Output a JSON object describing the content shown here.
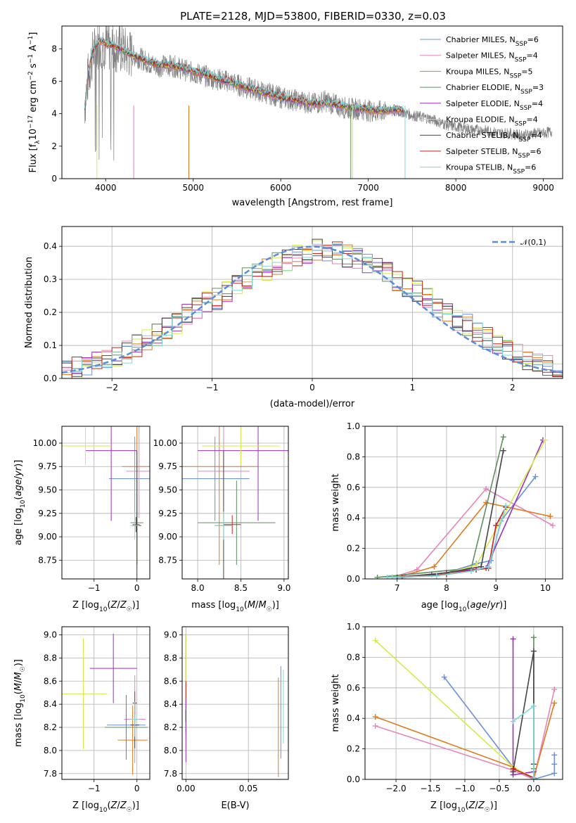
{
  "figure": {
    "title": "PLATE=2128, MJD=53800, FIBERID=0330, z=0.03"
  },
  "models": [
    {
      "name": "Chabrier MILES, N_SSP=6",
      "color": "#6a8fdc"
    },
    {
      "name": "Salpeter MILES, N_SSP=4",
      "color": "#e585bb"
    },
    {
      "name": "Kroupa MILES, N_SSP=5",
      "color": "#e07a1f"
    },
    {
      "name": "Chabrier ELODIE, N_SSP=3",
      "color": "#5d8f5f"
    },
    {
      "name": "Salpeter ELODIE, N_SSP=4",
      "color": "#9b2fbf"
    },
    {
      "name": "Kroupa ELODIE, N_SSP=4",
      "color": "#d6ea4b"
    },
    {
      "name": "Chabrier STELIB, N_SSP=4",
      "color": "#444444"
    },
    {
      "name": "Salpeter STELIB, N_SSP=6",
      "color": "#c0261f"
    },
    {
      "name": "Kroupa STELIB, N_SSP=6",
      "color": "#7fd6d9"
    }
  ],
  "chart_data": [
    {
      "id": "spectrum",
      "type": "line",
      "xlabel": "wavelength [Angstrom, rest frame]",
      "ylabel": "Flux [f_λ 10^-17 erg cm^-2 s^-1 A^-1]",
      "xlim": [
        3500,
        9220
      ],
      "ylim": [
        0,
        9.4
      ],
      "xticks": [
        4000,
        5000,
        6000,
        7000,
        8000,
        9000
      ],
      "yticks": [
        0,
        2,
        4,
        6,
        8
      ],
      "grid": false,
      "legend": "top-right",
      "data_color": "#808080",
      "data_x": [
        3760,
        3800,
        3850,
        3900,
        3950,
        4000,
        4100,
        4200,
        4300,
        4400,
        4500,
        4600,
        4700,
        4800,
        4900,
        5000,
        5100,
        5200,
        5300,
        5400,
        5500,
        5600,
        5700,
        5800,
        5900,
        6000,
        6100,
        6200,
        6300,
        6400,
        6500,
        6600,
        6700,
        6800,
        6900,
        7000,
        7100,
        7200,
        7300,
        7400,
        7500,
        7600,
        7700,
        7800,
        7900,
        8000,
        8100,
        8200,
        8300,
        8400,
        8500,
        8600,
        8700,
        8800,
        8900,
        9000,
        9100
      ],
      "data_y": [
        4.5,
        6.3,
        7.6,
        8.2,
        8.4,
        8.2,
        8.1,
        7.9,
        7.6,
        7.4,
        7.1,
        6.9,
        7.0,
        6.9,
        6.7,
        6.5,
        6.4,
        6.2,
        6.1,
        6.0,
        5.8,
        5.6,
        5.5,
        5.3,
        5.2,
        5.0,
        4.9,
        4.8,
        4.7,
        4.6,
        4.8,
        4.6,
        4.4,
        4.3,
        4.3,
        4.2,
        4.1,
        4.2,
        4.1,
        4.1,
        3.9,
        3.8,
        3.7,
        3.5,
        3.3,
        3.2,
        3.1,
        3.0,
        3.0,
        2.9,
        2.8,
        2.8,
        2.7,
        2.7,
        2.8,
        2.8,
        2.9
      ],
      "model_x": [
        3760,
        3800,
        3850,
        3900,
        3950,
        4000,
        4100,
        4200,
        4300,
        4400,
        4500,
        4600,
        4700,
        4800,
        4900,
        5000,
        5100,
        5200,
        5300,
        5400,
        5500,
        5600,
        5700,
        5800,
        5900,
        6000,
        6100,
        6200,
        6300,
        6400,
        6500,
        6600,
        6700,
        6800,
        6900,
        7000,
        7100,
        7200,
        7300,
        7400
      ],
      "model_y": [
        4.3,
        6.5,
        7.8,
        8.3,
        8.5,
        8.3,
        8.2,
        7.9,
        7.6,
        7.4,
        7.2,
        7.0,
        7.0,
        6.9,
        6.8,
        6.6,
        6.5,
        6.3,
        6.1,
        6.0,
        5.8,
        5.6,
        5.5,
        5.3,
        5.2,
        5.0,
        4.9,
        4.8,
        4.7,
        4.6,
        4.7,
        4.6,
        4.5,
        4.4,
        4.3,
        4.3,
        4.2,
        4.2,
        4.3,
        4.2
      ]
    },
    {
      "id": "residuals",
      "type": "line",
      "xlabel": "(data-model)/error",
      "ylabel": "Normed distribution",
      "xlim": [
        -2.5,
        2.5
      ],
      "ylim": [
        0,
        0.46
      ],
      "xticks": [
        -2,
        -1,
        0,
        1,
        2
      ],
      "yticks": [
        0.0,
        0.1,
        0.2,
        0.3,
        0.4
      ],
      "grid": true,
      "legend": "top-right",
      "legend_label": "𝒩(0,1)",
      "gauss_color": "#5b8bd9",
      "bins": [
        -2.5,
        -2.4,
        -2.3,
        -2.2,
        -2.1,
        -2.0,
        -1.9,
        -1.8,
        -1.7,
        -1.6,
        -1.5,
        -1.4,
        -1.3,
        -1.2,
        -1.1,
        -1.0,
        -0.9,
        -0.8,
        -0.7,
        -0.6,
        -0.5,
        -0.4,
        -0.3,
        -0.2,
        -0.1,
        0.0,
        0.1,
        0.2,
        0.3,
        0.4,
        0.5,
        0.6,
        0.7,
        0.8,
        0.9,
        1.0,
        1.1,
        1.2,
        1.3,
        1.4,
        1.5,
        1.6,
        1.7,
        1.8,
        1.9,
        2.0,
        2.1,
        2.2,
        2.3,
        2.4,
        2.5
      ],
      "hist_base": [
        0.02,
        0.03,
        0.04,
        0.05,
        0.06,
        0.06,
        0.08,
        0.1,
        0.12,
        0.13,
        0.15,
        0.17,
        0.19,
        0.21,
        0.23,
        0.24,
        0.26,
        0.28,
        0.3,
        0.32,
        0.33,
        0.35,
        0.36,
        0.37,
        0.38,
        0.39,
        0.39,
        0.38,
        0.37,
        0.36,
        0.35,
        0.33,
        0.32,
        0.3,
        0.28,
        0.26,
        0.24,
        0.22,
        0.2,
        0.18,
        0.16,
        0.14,
        0.12,
        0.1,
        0.09,
        0.07,
        0.06,
        0.05,
        0.04,
        0.03
      ]
    },
    {
      "id": "age-vs-Z",
      "type": "scatter",
      "xlabel": "Z [log10(Z/Z☉)]",
      "ylabel": "age  [log10(age/yr)]",
      "xlim": [
        -1.75,
        0.3
      ],
      "ylim": [
        8.55,
        10.18
      ],
      "xticks": [
        -1,
        0
      ],
      "yticks": [
        8.75,
        9.0,
        9.25,
        9.5,
        9.75,
        10.0
      ],
      "grid": true,
      "points": [
        {
          "m": 0,
          "x": -0.05,
          "y": 9.62,
          "xe": 0.6,
          "ye": 0.45
        },
        {
          "m": 1,
          "x": 0.05,
          "y": 9.7,
          "xe": 0.3,
          "ye": 0.5
        },
        {
          "m": 2,
          "x": 0.0,
          "y": 9.75,
          "xe": 0.35,
          "ye": 1.05
        },
        {
          "m": 3,
          "x": 0.0,
          "y": 9.15,
          "xe": 0.15,
          "ye": 0.45
        },
        {
          "m": 4,
          "x": -0.6,
          "y": 9.92,
          "xe": 0.6,
          "ye": 0.75
        },
        {
          "m": 5,
          "x": -1.2,
          "y": 9.97,
          "xe": 0.6,
          "ye": 0.2
        },
        {
          "m": 6,
          "x": 0.0,
          "y": 9.12,
          "xe": 0.1,
          "ye": 0.8
        },
        {
          "m": 7,
          "x": -0.02,
          "y": 9.13,
          "xe": 0.08,
          "ye": 0.08
        },
        {
          "m": 8,
          "x": -0.05,
          "y": 9.12,
          "xe": 0.1,
          "ye": 0.15
        }
      ]
    },
    {
      "id": "age-vs-mass",
      "type": "scatter",
      "xlabel": "mass [log10(M/M☉)]",
      "ylabel": "",
      "xlim": [
        7.82,
        9.05
      ],
      "ylim": [
        8.55,
        10.18
      ],
      "xticks": [
        8.0,
        8.5,
        9.0
      ],
      "yticks": [
        8.75,
        9.0,
        9.25,
        9.5,
        9.75,
        10.0
      ],
      "grid": true,
      "points": [
        {
          "m": 0,
          "x": 8.2,
          "y": 9.62,
          "xe": 0.4,
          "ye": 0.45
        },
        {
          "m": 1,
          "x": 8.3,
          "y": 9.7,
          "xe": 0.3,
          "ye": 0.5
        },
        {
          "m": 2,
          "x": 8.25,
          "y": 9.75,
          "xe": 0.45,
          "ye": 1.05
        },
        {
          "m": 3,
          "x": 8.45,
          "y": 9.15,
          "xe": 0.45,
          "ye": 0.45
        },
        {
          "m": 4,
          "x": 8.7,
          "y": 9.92,
          "xe": 0.7,
          "ye": 0.75
        },
        {
          "m": 5,
          "x": 8.5,
          "y": 9.97,
          "xe": 0.45,
          "ye": 0.2
        },
        {
          "m": 6,
          "x": 8.3,
          "y": 9.12,
          "xe": 0.1,
          "ye": 0.8
        },
        {
          "m": 7,
          "x": 8.4,
          "y": 9.13,
          "xe": 0.1,
          "ye": 0.1
        },
        {
          "m": 8,
          "x": 8.3,
          "y": 9.12,
          "xe": 0.1,
          "ye": 0.15
        }
      ]
    },
    {
      "id": "massweight-vs-age",
      "type": "line",
      "xlabel": "age  [log10(age/yr)]",
      "ylabel": "mass weight",
      "xlim": [
        6.35,
        10.35
      ],
      "ylim": [
        0,
        1.0
      ],
      "xticks": [
        7,
        8,
        9,
        10
      ],
      "yticks": [
        0.0,
        0.2,
        0.4,
        0.6,
        0.8,
        1.0
      ],
      "grid": true,
      "series": [
        {
          "m": 0,
          "x": [
            6.9,
            7.8,
            8.6,
            8.9,
            9.1,
            9.8
          ],
          "y": [
            0.01,
            0.02,
            0.1,
            0.12,
            0.38,
            0.67
          ]
        },
        {
          "m": 1,
          "x": [
            6.9,
            7.4,
            8.8,
            10.15
          ],
          "y": [
            0.01,
            0.06,
            0.59,
            0.35
          ]
        },
        {
          "m": 2,
          "x": [
            7.0,
            7.75,
            8.8,
            10.1
          ],
          "y": [
            0.01,
            0.08,
            0.5,
            0.41
          ]
        },
        {
          "m": 3,
          "x": [
            6.6,
            8.5,
            9.15
          ],
          "y": [
            0.01,
            0.07,
            0.93
          ]
        },
        {
          "m": 4,
          "x": [
            6.9,
            7.7,
            8.8,
            9.95
          ],
          "y": [
            0.01,
            0.03,
            0.07,
            0.91
          ]
        },
        {
          "m": 5,
          "x": [
            6.9,
            7.8,
            8.6,
            10.0
          ],
          "y": [
            0.01,
            0.02,
            0.09,
            0.91
          ]
        },
        {
          "m": 6,
          "x": [
            7.0,
            8.0,
            8.7,
            9.15
          ],
          "y": [
            0.01,
            0.04,
            0.08,
            0.84
          ]
        },
        {
          "m": 7,
          "x": [
            7.1,
            8.0,
            8.6,
            8.85,
            9.0,
            9.2
          ],
          "y": [
            0.01,
            0.03,
            0.06,
            0.07,
            0.35,
            0.47
          ]
        },
        {
          "m": 8,
          "x": [
            6.8,
            7.8,
            8.5,
            8.85,
            9.2
          ],
          "y": [
            0.01,
            0.02,
            0.05,
            0.08,
            0.48
          ]
        }
      ]
    },
    {
      "id": "mass-vs-Z",
      "type": "scatter",
      "xlabel": "Z [log10(Z/Z☉)]",
      "ylabel": "mass [log10(M/M☉)]",
      "xlim": [
        -1.75,
        0.3
      ],
      "ylim": [
        7.75,
        9.07
      ],
      "xticks": [
        -1,
        0
      ],
      "yticks": [
        7.8,
        8.0,
        8.2,
        8.4,
        8.6,
        8.8,
        9.0
      ],
      "grid": true,
      "points": [
        {
          "m": 0,
          "x": -0.25,
          "y": 8.22,
          "xe": 0.45,
          "ye": 0.1
        },
        {
          "m": 1,
          "x": -0.05,
          "y": 8.27,
          "xe": 0.25,
          "ye": 0.38
        },
        {
          "m": 2,
          "x": -0.1,
          "y": 8.09,
          "xe": 0.35,
          "ye": 0.3
        },
        {
          "m": 3,
          "x": -0.25,
          "y": 8.2,
          "xe": 0.5,
          "ye": 0.28
        },
        {
          "m": 4,
          "x": -0.55,
          "y": 8.71,
          "xe": 0.55,
          "ye": 0.3
        },
        {
          "m": 5,
          "x": -1.25,
          "y": 8.49,
          "xe": 0.55,
          "ye": 0.48
        },
        {
          "m": 6,
          "x": -0.05,
          "y": 8.22,
          "xe": 0.1,
          "ye": 0.2
        },
        {
          "m": 7,
          "x": -0.05,
          "y": 8.41,
          "xe": 0.05,
          "ye": 0.1
        },
        {
          "m": 8,
          "x": -0.05,
          "y": 8.27,
          "xe": 0.1,
          "ye": 0.15
        }
      ]
    },
    {
      "id": "mass-vs-EBV",
      "type": "scatter",
      "xlabel": "E(B-V)",
      "ylabel": "",
      "xlim": [
        -0.003,
        0.082
      ],
      "ylim": [
        7.75,
        9.07
      ],
      "xticks": [
        0.0,
        0.05
      ],
      "yticks": [
        7.8,
        8.0,
        8.2,
        8.4,
        8.6,
        8.8,
        9.0
      ],
      "grid": true,
      "points": [
        {
          "m": 0,
          "x": 0.076,
          "y": 8.33,
          "xe": 0.0,
          "ye": 0.4
        },
        {
          "m": 1,
          "x": 0.0,
          "y": 8.3,
          "xe": 0.0,
          "ye": 0.2
        },
        {
          "m": 2,
          "x": 0.074,
          "y": 8.2,
          "xe": 0.0,
          "ye": 0.43
        },
        {
          "m": 3,
          "x": 0.0,
          "y": 8.3,
          "xe": 0.0,
          "ye": 0.15
        },
        {
          "m": 4,
          "x": 0.0,
          "y": 8.45,
          "xe": 0.0,
          "ye": 0.55
        },
        {
          "m": 5,
          "x": 0.0,
          "y": 8.72,
          "xe": 0.0,
          "ye": 0.28
        },
        {
          "m": 6,
          "x": 0.0,
          "y": 8.3,
          "xe": 0.0,
          "ye": 0.05
        },
        {
          "m": 7,
          "x": 0.0,
          "y": 8.52,
          "xe": 0.0,
          "ye": 0.08
        },
        {
          "m": 8,
          "x": 0.078,
          "y": 8.38,
          "xe": 0.0,
          "ye": 0.32
        }
      ]
    },
    {
      "id": "massweight-vs-Z",
      "type": "line",
      "xlabel": "Z [log10(Z/Z☉)]",
      "ylabel": "mass weight",
      "xlim": [
        -2.45,
        0.42
      ],
      "ylim": [
        0,
        1.0
      ],
      "xticks": [
        -2.0,
        -1.5,
        -1.0,
        -0.5,
        0.0
      ],
      "yticks": [
        0.0,
        0.2,
        0.4,
        0.6,
        0.8,
        1.0
      ],
      "grid": true,
      "series": [
        {
          "m": 0,
          "x": [
            -1.3,
            -0.3,
            0.0,
            0.3,
            0.3,
            0.3
          ],
          "y": [
            0.67,
            0.08,
            0.0,
            0.04,
            0.1,
            0.16
          ]
        },
        {
          "m": 1,
          "x": [
            -2.3,
            -0.3,
            0.0,
            0.3
          ],
          "y": [
            0.35,
            0.06,
            0.0,
            0.59
          ]
        },
        {
          "m": 2,
          "x": [
            -2.3,
            -0.3,
            0.0,
            0.3
          ],
          "y": [
            0.41,
            0.08,
            0.01,
            0.5
          ]
        },
        {
          "m": 3,
          "x": [
            0.0,
            0.0,
            0.0
          ],
          "y": [
            0.93,
            0.07,
            0.0
          ]
        },
        {
          "m": 4,
          "x": [
            -0.3,
            -0.3,
            0.0
          ],
          "y": [
            0.92,
            0.03,
            0.05
          ]
        },
        {
          "m": 5,
          "x": [
            -2.3,
            -0.3,
            0.0
          ],
          "y": [
            0.91,
            0.08,
            0.01
          ]
        },
        {
          "m": 6,
          "x": [
            -0.3,
            0.0,
            0.0
          ],
          "y": [
            0.05,
            0.84,
            0.1
          ]
        },
        {
          "m": 7,
          "x": [
            -0.3,
            0.0
          ],
          "y": [
            0.07,
            0.01
          ]
        },
        {
          "m": 8,
          "x": [
            -0.3,
            0.0,
            0.0
          ],
          "y": [
            0.38,
            0.48,
            0.01
          ]
        }
      ]
    }
  ]
}
